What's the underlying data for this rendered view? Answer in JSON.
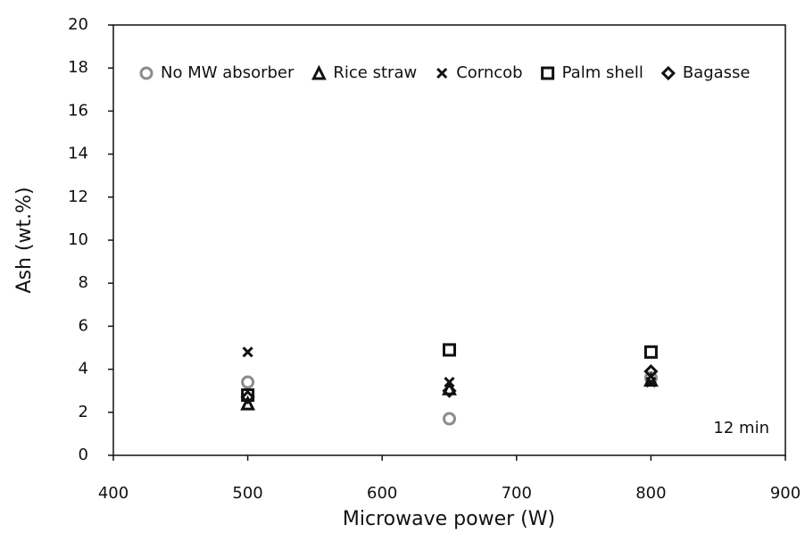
{
  "chart_data": {
    "type": "scatter",
    "x_label": "Microwave power (W)",
    "y_label": "Ash (wt.%)",
    "annotation": "12 min",
    "x": [
      500,
      650,
      800
    ],
    "xlim": [
      400,
      900
    ],
    "xticks": [
      400,
      500,
      600,
      700,
      800,
      900
    ],
    "ylim": [
      0,
      20
    ],
    "yticks": [
      0,
      2,
      4,
      6,
      8,
      10,
      12,
      14,
      16,
      18,
      20
    ],
    "legend": "top",
    "series": [
      {
        "name": "No MW absorber",
        "color": "#8c8c8c",
        "marker": "circle",
        "values": [
          3.4,
          1.7,
          3.6
        ]
      },
      {
        "name": "Rice straw",
        "color": "#111111",
        "marker": "triangle",
        "values": [
          2.4,
          3.1,
          3.5
        ]
      },
      {
        "name": "Corncob",
        "color": "#111111",
        "marker": "x",
        "values": [
          4.8,
          3.4,
          3.4
        ]
      },
      {
        "name": "Palm shell",
        "color": "#111111",
        "marker": "square",
        "values": [
          2.8,
          4.9,
          4.8
        ]
      },
      {
        "name": "Bagasse",
        "color": "#111111",
        "marker": "diamond",
        "values": [
          2.7,
          3.0,
          3.9
        ]
      }
    ]
  }
}
